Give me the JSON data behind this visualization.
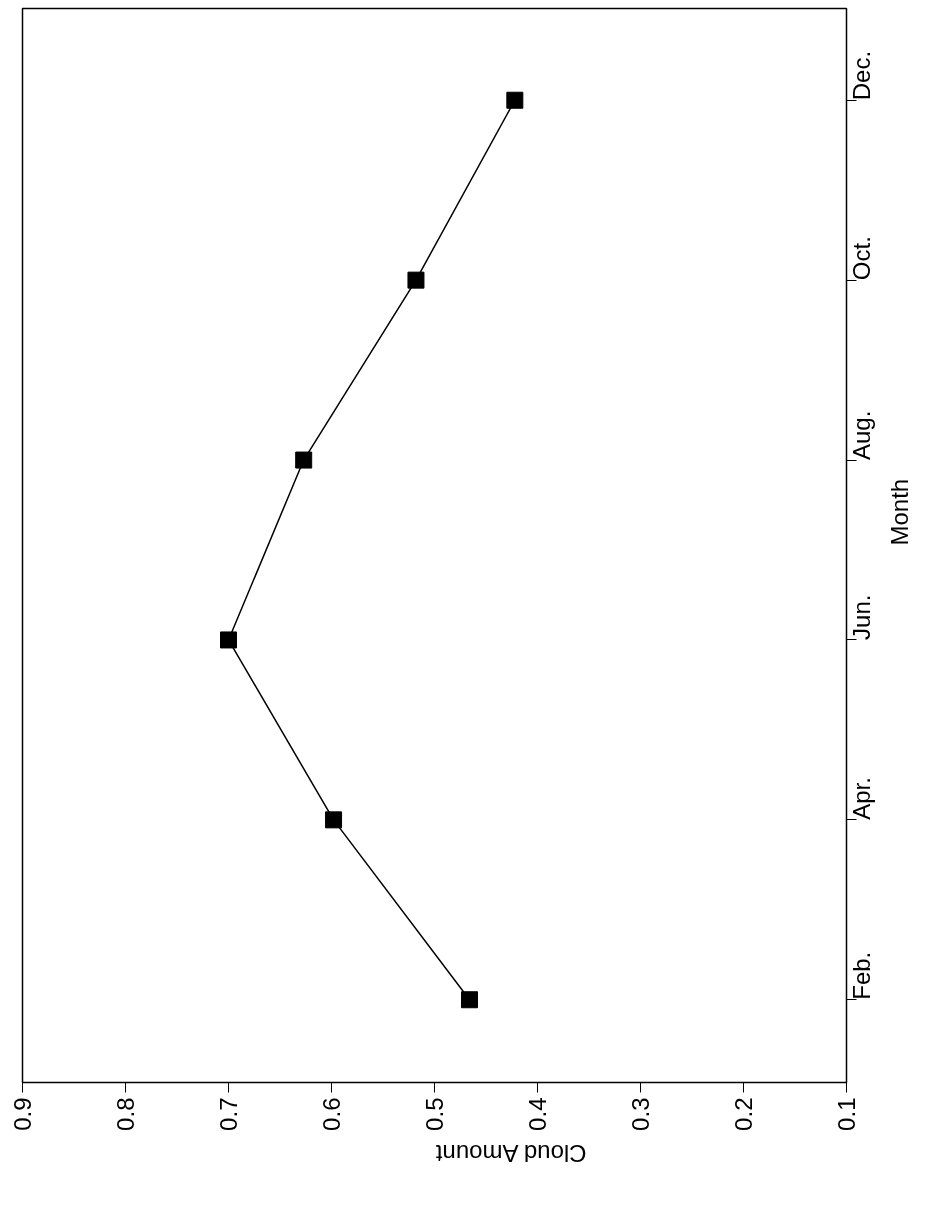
{
  "chart_data": {
    "type": "line",
    "orientation": "horizontal",
    "categories": [
      "Dec.",
      "Oct.",
      "Aug.",
      "Jun.",
      "Apr.",
      "Feb."
    ],
    "values": [
      0.422,
      0.518,
      0.627,
      0.7,
      0.598,
      0.466
    ],
    "color": "#000000",
    "xlabel": "Cloud Amount",
    "ylabel": "Month",
    "xlim": [
      0.9,
      0.1
    ],
    "xticks": [
      0.9,
      0.8,
      0.7,
      0.6,
      0.5,
      0.4,
      0.3,
      0.2,
      0.1
    ],
    "marker": "square",
    "line_style": "solid",
    "grid": false
  }
}
